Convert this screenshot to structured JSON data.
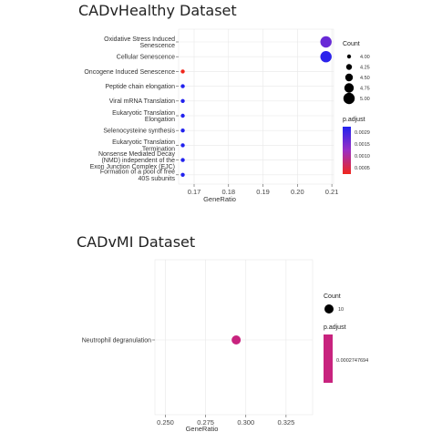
{
  "chart_data": [
    {
      "type": "scatter",
      "title": "CADvHealthy Dataset",
      "xlabel": "GeneRatio",
      "ylabel": "",
      "xlim": [
        0.1655,
        0.2105
      ],
      "xticks": [
        "0.17",
        "0.18",
        "0.19",
        "0.20",
        "0.21"
      ],
      "xtick_values": [
        0.17,
        0.18,
        0.19,
        0.2,
        0.21
      ],
      "categories": [
        "Oxidative Stress Induced Senescence",
        "Cellular Senescence",
        "Oncogene Induced Senescence",
        "Peptide chain elongation",
        "Viral mRNA Translation",
        "Eukaryotic Translation Elongation",
        "Selenocysteine synthesis",
        "Eukaryotic Translation Termination",
        "Nonsense Mediated Decay (NMD) independent of the Exon Junction Complex (EJC)",
        "Formation of a pool of free 40S subunits"
      ],
      "points": [
        {
          "term": "Oxidative Stress Induced Senescence",
          "gene_ratio": 0.2083,
          "count": 5,
          "p_adjust": 0.0022
        },
        {
          "term": "Cellular Senescence",
          "gene_ratio": 0.2083,
          "count": 5,
          "p_adjust": 0.0028
        },
        {
          "term": "Oncogene Induced Senescence",
          "gene_ratio": 0.1667,
          "count": 4,
          "p_adjust": 0.0005
        },
        {
          "term": "Peptide chain elongation",
          "gene_ratio": 0.1667,
          "count": 4,
          "p_adjust": 0.0029
        },
        {
          "term": "Viral mRNA Translation",
          "gene_ratio": 0.1667,
          "count": 4,
          "p_adjust": 0.0029
        },
        {
          "term": "Eukaryotic Translation Elongation",
          "gene_ratio": 0.1667,
          "count": 4,
          "p_adjust": 0.0029
        },
        {
          "term": "Selenocysteine synthesis",
          "gene_ratio": 0.1667,
          "count": 4,
          "p_adjust": 0.0029
        },
        {
          "term": "Eukaryotic Translation Termination",
          "gene_ratio": 0.1667,
          "count": 4,
          "p_adjust": 0.0029
        },
        {
          "term": "Nonsense Mediated Decay (NMD) independent of the Exon Junction Complex (EJC)",
          "gene_ratio": 0.1667,
          "count": 4,
          "p_adjust": 0.0029
        },
        {
          "term": "Formation of a pool of free 40S subunits",
          "gene_ratio": 0.1667,
          "count": 4,
          "p_adjust": 0.0029
        }
      ],
      "legend_count": {
        "title": "Count",
        "values": [
          "4.00",
          "4.25",
          "4.50",
          "4.75",
          "5.00"
        ]
      },
      "legend_padjust": {
        "title": "p.adjust",
        "values": [
          "0.0029",
          "0.0015",
          "0.0010",
          "0.0005"
        ],
        "low_color": "#f0261c",
        "high_color": "#2222ee"
      },
      "legend_placement": "right",
      "grid": true
    },
    {
      "type": "scatter",
      "title": "CADvMI Dataset",
      "xlabel": "GeneRatio",
      "ylabel": "",
      "xlim": [
        0.2435,
        0.3415
      ],
      "xticks": [
        "0.250",
        "0.275",
        "0.300",
        "0.325"
      ],
      "xtick_values": [
        0.25,
        0.275,
        0.3,
        0.325
      ],
      "categories": [
        "Neutrophil degranulation"
      ],
      "points": [
        {
          "term": "Neutrophil degranulation",
          "gene_ratio": 0.294,
          "count": 10,
          "p_adjust": 0.0002747694
        }
      ],
      "legend_count": {
        "title": "Count",
        "values": [
          "10"
        ]
      },
      "legend_padjust": {
        "title": "p.adjust",
        "values": [
          "0.0002747694"
        ],
        "color": "#c8237e"
      },
      "legend_placement": "right",
      "grid": true
    }
  ]
}
